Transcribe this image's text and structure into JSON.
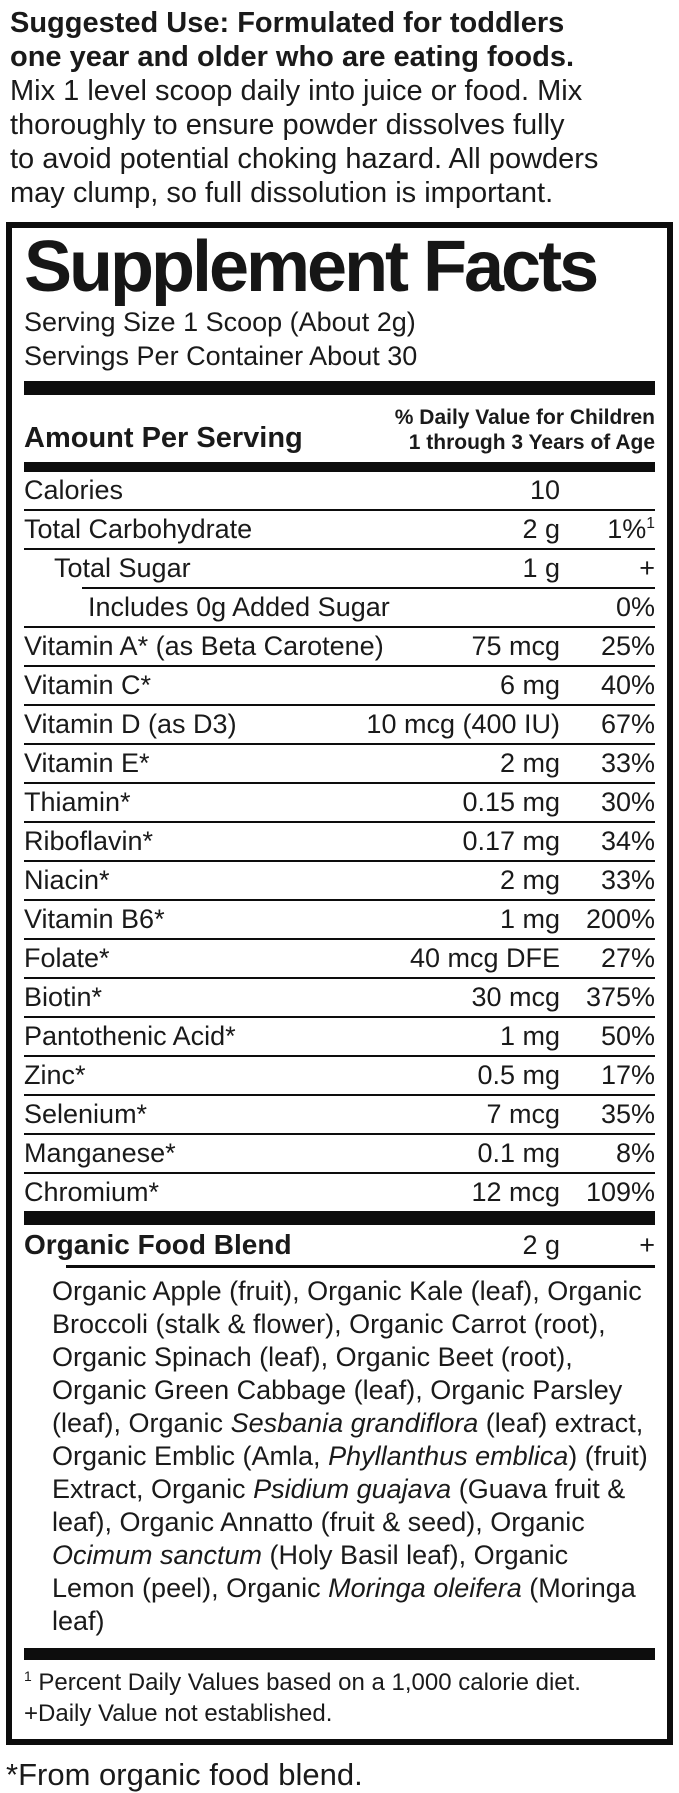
{
  "suggested_use": {
    "lines": [
      {
        "b": true,
        "t": "Suggested Use: Formulated for toddlers"
      },
      {
        "b": true,
        "t": "one year and older who are eating foods."
      },
      {
        "b": false,
        "t": "Mix 1 level scoop daily into juice or food. Mix"
      },
      {
        "b": false,
        "t": "thoroughly to ensure powder dissolves fully"
      },
      {
        "b": false,
        "t": "to avoid potential choking hazard. All powders"
      },
      {
        "b": false,
        "t": "may clump, so full dissolution is important."
      }
    ]
  },
  "facts": {
    "title": "Supplement Facts",
    "serving_size": "Serving Size 1 Scoop (About 2g)",
    "servings_per_container": "Servings Per Container About 30",
    "amount_per_serving_label": "Amount Per Serving",
    "dv_header_line1": "% Daily Value for Children",
    "dv_header_line2": "1 through 3 Years of Age",
    "rows": [
      {
        "name": "Calories",
        "amount": "10",
        "dv": ""
      },
      {
        "name": "Total Carbohydrate",
        "amount": "2 g",
        "dv": "1%",
        "dv_sup": "1"
      },
      {
        "name": "Total Sugar",
        "amount": "1 g",
        "dv": "+",
        "indent": 1
      },
      {
        "name": "Includes 0g Added Sugar",
        "amount": "",
        "dv": "0%",
        "indent": 2,
        "rule": "partial"
      },
      {
        "name": "Vitamin A* (as Beta Carotene)",
        "amount": "75 mcg",
        "dv": "25%"
      },
      {
        "name": "Vitamin C*",
        "amount": "6 mg",
        "dv": "40%"
      },
      {
        "name": "Vitamin D (as D3)",
        "amount": "10 mcg (400 IU)",
        "dv": "67%"
      },
      {
        "name": "Vitamin E*",
        "amount": "2 mg",
        "dv": "33%"
      },
      {
        "name": "Thiamin*",
        "amount": "0.15 mg",
        "dv": "30%"
      },
      {
        "name": "Riboflavin*",
        "amount": "0.17 mg",
        "dv": "34%"
      },
      {
        "name": "Niacin*",
        "amount": "2 mg",
        "dv": "33%"
      },
      {
        "name": "Vitamin B6*",
        "amount": "1 mg",
        "dv": "200%"
      },
      {
        "name": "Folate*",
        "amount": "40 mcg DFE",
        "dv": "27%"
      },
      {
        "name": "Biotin*",
        "amount": "30 mcg",
        "dv": "375%"
      },
      {
        "name": "Pantothenic Acid*",
        "amount": "1 mg",
        "dv": "50%"
      },
      {
        "name": "Zinc*",
        "amount": "0.5 mg",
        "dv": "17%"
      },
      {
        "name": "Selenium*",
        "amount": "7 mcg",
        "dv": "35%"
      },
      {
        "name": "Manganese*",
        "amount": "0.1 mg",
        "dv": "8%"
      },
      {
        "name": "Chromium*",
        "amount": "12 mcg",
        "dv": "109%"
      }
    ],
    "blend": {
      "name": "Organic Food Blend",
      "amount": "2 g",
      "dv": "+",
      "ingredients": [
        {
          "i": false,
          "t": "Organic Apple (fruit), Organic Kale (leaf), Organic Broccoli (stalk & flower), Organic Carrot (root), Organic Spinach (leaf), Organic Beet (root), Organic Green Cabbage (leaf), Organic Parsley (leaf), Organic "
        },
        {
          "i": true,
          "t": "Sesbania grandiflora"
        },
        {
          "i": false,
          "t": " (leaf) extract, Organic Emblic (Amla, "
        },
        {
          "i": true,
          "t": "Phyllanthus emblica"
        },
        {
          "i": false,
          "t": ") (fruit) Extract, Organic "
        },
        {
          "i": true,
          "t": "Psidium guajava"
        },
        {
          "i": false,
          "t": " (Guava fruit & leaf), Organic Annatto (fruit & seed), Organic "
        },
        {
          "i": true,
          "t": "Ocimum sanctum"
        },
        {
          "i": false,
          "t": " (Holy Basil leaf), Organic Lemon (peel), Organic "
        },
        {
          "i": true,
          "t": "Moringa oleifera"
        },
        {
          "i": false,
          "t": " (Moringa leaf)"
        }
      ]
    },
    "footnote1_sup": "1",
    "footnote1_text": "Percent Daily Values based on a 1,000 calorie diet.",
    "footnote2": "+Daily Value not established."
  },
  "bottom_note": "*From organic food blend.",
  "colors": {
    "ink": "#1a1a1a",
    "rule": "#0d0d0d",
    "background": "#ffffff"
  }
}
